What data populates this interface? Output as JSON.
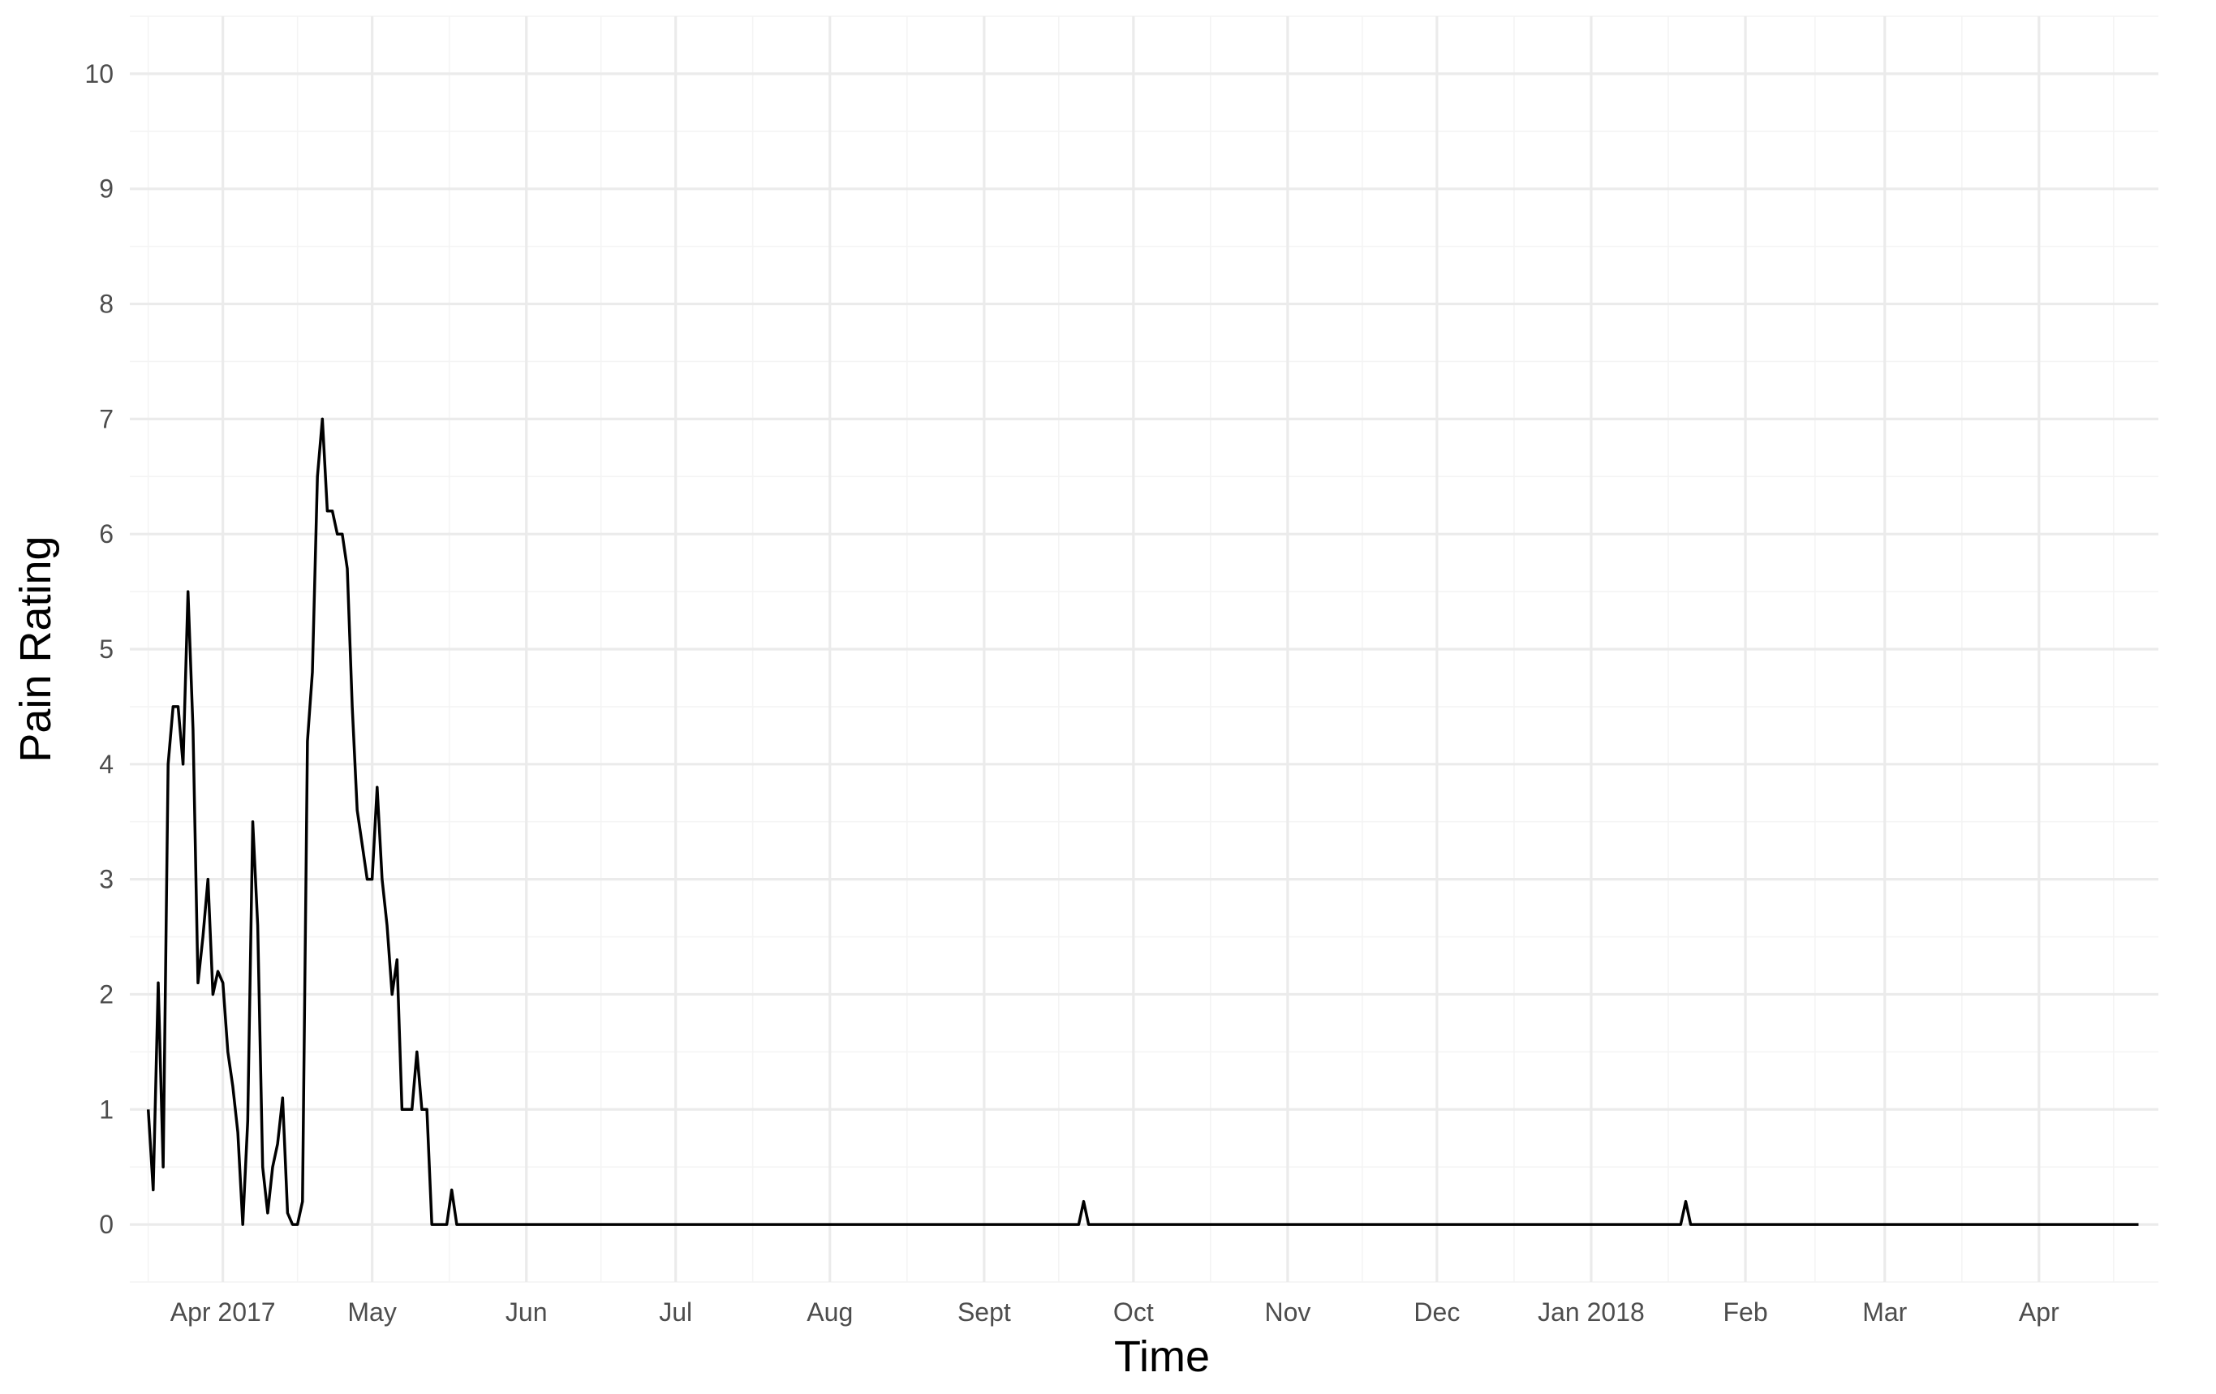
{
  "chart_data": {
    "type": "line",
    "xlabel": "Time",
    "ylabel": "Pain Rating",
    "ylim": [
      0,
      10
    ],
    "y_ticks": [
      0,
      1,
      2,
      3,
      4,
      5,
      6,
      7,
      8,
      9,
      10
    ],
    "x_range": [
      "2017-03-17",
      "2018-04-24"
    ],
    "x_ticks": [
      {
        "date": "2017-04-01",
        "label": "Apr 2017"
      },
      {
        "date": "2017-05-01",
        "label": "May"
      },
      {
        "date": "2017-06-01",
        "label": "Jun"
      },
      {
        "date": "2017-07-01",
        "label": "Jul"
      },
      {
        "date": "2017-08-01",
        "label": "Aug"
      },
      {
        "date": "2017-09-01",
        "label": "Sept"
      },
      {
        "date": "2017-10-01",
        "label": "Oct"
      },
      {
        "date": "2017-11-01",
        "label": "Nov"
      },
      {
        "date": "2017-12-01",
        "label": "Dec"
      },
      {
        "date": "2018-01-01",
        "label": "Jan 2018"
      },
      {
        "date": "2018-02-01",
        "label": "Feb"
      },
      {
        "date": "2018-03-01",
        "label": "Mar"
      },
      {
        "date": "2018-04-01",
        "label": "Apr"
      }
    ],
    "grid": true,
    "legend": "none",
    "line_color": "#000000",
    "x": [
      "2017-03-17",
      "2017-03-18",
      "2017-03-19",
      "2017-03-20",
      "2017-03-21",
      "2017-03-22",
      "2017-03-23",
      "2017-03-24",
      "2017-03-25",
      "2017-03-26",
      "2017-03-27",
      "2017-03-28",
      "2017-03-29",
      "2017-03-30",
      "2017-03-31",
      "2017-04-01",
      "2017-04-02",
      "2017-04-03",
      "2017-04-04",
      "2017-04-05",
      "2017-04-06",
      "2017-04-07",
      "2017-04-08",
      "2017-04-09",
      "2017-04-10",
      "2017-04-11",
      "2017-04-12",
      "2017-04-13",
      "2017-04-14",
      "2017-04-15",
      "2017-04-16",
      "2017-04-17",
      "2017-04-18",
      "2017-04-19",
      "2017-04-20",
      "2017-04-21",
      "2017-04-22",
      "2017-04-23",
      "2017-04-24",
      "2017-04-25",
      "2017-04-26",
      "2017-04-27",
      "2017-04-28",
      "2017-04-29",
      "2017-04-30",
      "2017-05-01",
      "2017-05-02",
      "2017-05-03",
      "2017-05-04",
      "2017-05-05",
      "2017-05-06",
      "2017-05-07",
      "2017-05-08",
      "2017-05-09",
      "2017-05-10",
      "2017-05-11",
      "2017-05-12",
      "2017-05-13",
      "2017-05-14",
      "2017-05-15",
      "2017-05-16",
      "2017-05-17",
      "2017-05-18",
      "2017-05-19",
      "2017-05-20",
      "2017-05-21",
      "2017-05-22",
      "2017-05-23",
      "2017-05-24",
      "2017-05-25",
      "2017-05-26",
      "2017-05-27",
      "2017-05-28",
      "2017-05-29",
      "2017-05-30",
      "2017-05-31",
      "2017-06-01",
      "2017-06-02",
      "2017-06-03",
      "2017-06-04",
      "2017-06-05",
      "2017-06-06",
      "2017-06-07",
      "2017-06-08",
      "2017-06-09",
      "2017-06-10",
      "2017-06-11",
      "2017-06-12",
      "2017-06-13",
      "2017-06-14",
      "2017-06-15",
      "2017-09-20",
      "2017-09-21",
      "2017-09-22",
      "2018-01-19",
      "2018-01-20",
      "2018-01-21",
      "2018-04-21"
    ],
    "y": [
      1,
      0.3,
      2.1,
      0.5,
      4.0,
      4.5,
      4.5,
      4.0,
      5.5,
      4.3,
      2.1,
      2.5,
      3.0,
      2.0,
      2.2,
      2.1,
      1.5,
      1.2,
      0.8,
      0,
      0.9,
      3.5,
      2.6,
      0.5,
      0.1,
      0.5,
      0.7,
      1.1,
      0.1,
      0,
      0,
      0.2,
      4.2,
      4.8,
      6.5,
      7.0,
      6.2,
      6.2,
      6.0,
      6.0,
      5.7,
      4.5,
      3.6,
      3.3,
      3.0,
      3.0,
      3.8,
      3.0,
      2.6,
      2.0,
      2.3,
      1.0,
      1.0,
      1.0,
      1.5,
      1.0,
      1.0,
      0,
      0,
      0,
      0,
      0.3,
      0,
      0,
      0,
      0,
      0,
      0,
      0,
      0,
      0,
      0,
      0,
      0,
      0,
      0,
      0,
      0,
      0,
      0,
      0,
      0,
      0,
      0,
      0,
      0,
      0,
      0,
      0,
      0,
      0,
      0,
      0.2,
      0,
      0,
      0.2,
      0,
      0
    ]
  }
}
